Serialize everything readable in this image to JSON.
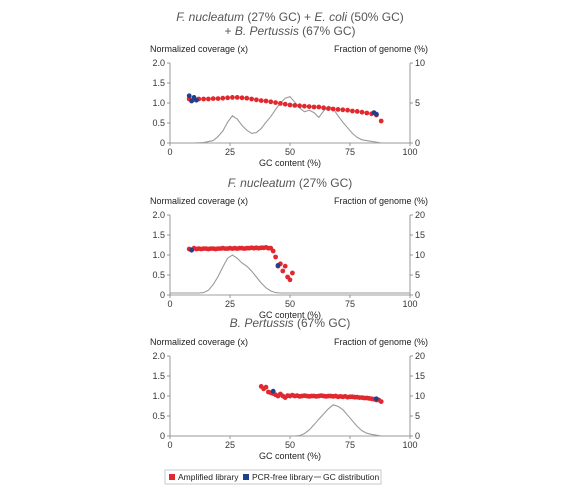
{
  "colors": {
    "amplified": "#e0282e",
    "pcr_free": "#1f3f8f",
    "gc": "#9a9a9a",
    "axis": "#7f7f7f"
  },
  "legend": {
    "items": [
      {
        "key": "amplified",
        "label": "Amplified library"
      },
      {
        "key": "pcr_free",
        "label": "PCR-free library"
      },
      {
        "key": "gc",
        "label": "GC distribution"
      }
    ]
  },
  "chart_data": [
    {
      "type": "scatter",
      "title_parts": [
        "F. nucleatum",
        " (27% GC) + ",
        "E. coli",
        " (50% GC)"
      ],
      "title_line2_parts": [
        "+ ",
        "B. Pertussis",
        " (67% GC)"
      ],
      "xlabel": "GC content (%)",
      "ylabel_left": "Normalized coverage (x)",
      "ylabel_right": "Fraction of genome (%)",
      "xlim": [
        0,
        100
      ],
      "ylim_left": [
        0,
        2.0
      ],
      "ylim_right": [
        0,
        10
      ],
      "x_ticks": [
        "0",
        "25",
        "50",
        "75",
        "100"
      ],
      "y_ticks_left": [
        "0",
        "0.5",
        "1.0",
        "1.5",
        "2.0"
      ],
      "y_ticks_right": [
        "0",
        "5",
        "10"
      ],
      "series": [
        {
          "name": "Amplified library",
          "key": "amplified",
          "x": [
            8,
            10,
            12,
            14,
            16,
            18,
            20,
            22,
            24,
            26,
            28,
            30,
            32,
            34,
            36,
            38,
            40,
            42,
            44,
            46,
            48,
            50,
            52,
            54,
            56,
            58,
            60,
            62,
            64,
            66,
            68,
            70,
            72,
            74,
            76,
            78,
            80,
            82,
            84,
            86,
            88
          ],
          "y": [
            1.1,
            1.09,
            1.1,
            1.1,
            1.1,
            1.11,
            1.11,
            1.12,
            1.13,
            1.14,
            1.14,
            1.13,
            1.12,
            1.1,
            1.08,
            1.06,
            1.05,
            1.03,
            1.01,
            0.99,
            0.97,
            0.95,
            0.94,
            0.93,
            0.92,
            0.91,
            0.9,
            0.9,
            0.88,
            0.86,
            0.85,
            0.84,
            0.83,
            0.82,
            0.8,
            0.79,
            0.77,
            0.75,
            0.73,
            0.7,
            0.55
          ]
        },
        {
          "name": "PCR-free library",
          "key": "pcr_free",
          "x": [
            8,
            9,
            10,
            11,
            85,
            86
          ],
          "y": [
            1.18,
            1.05,
            1.14,
            1.07,
            0.76,
            0.72
          ]
        },
        {
          "name": "GC distribution",
          "key": "gc",
          "kind": "line",
          "x": [
            0,
            10,
            14,
            18,
            20,
            22,
            24,
            26,
            28,
            30,
            32,
            34,
            36,
            38,
            40,
            42,
            44,
            46,
            48,
            50,
            52,
            54,
            56,
            58,
            60,
            62,
            64,
            66,
            68,
            70,
            72,
            74,
            76,
            78,
            80,
            84,
            86,
            88,
            100
          ],
          "y": [
            0,
            0,
            0.05,
            0.3,
            0.8,
            1.5,
            2.6,
            3.4,
            3.0,
            2.2,
            1.6,
            1.2,
            1.3,
            1.8,
            2.6,
            3.3,
            4.2,
            5.0,
            5.6,
            5.8,
            5.1,
            4.4,
            3.9,
            4.1,
            3.8,
            3.2,
            4.0,
            4.6,
            4.3,
            3.4,
            2.6,
            1.9,
            1.2,
            0.7,
            0.4,
            0.2,
            0.1,
            0,
            0
          ]
        }
      ]
    },
    {
      "type": "scatter",
      "title_parts": [
        "F. nucleatum",
        " (27% GC)"
      ],
      "xlabel": "GC content (%)",
      "ylabel_left": "Normalized coverage (x)",
      "ylabel_right": "Fraction of genome (%)",
      "xlim": [
        0,
        100
      ],
      "ylim_left": [
        0,
        2.0
      ],
      "ylim_right": [
        0,
        20
      ],
      "x_ticks": [
        "0",
        "25",
        "50",
        "75",
        "100"
      ],
      "y_ticks_left": [
        "0",
        "0.5",
        "1.0",
        "1.5",
        "2.0"
      ],
      "y_ticks_right": [
        "0",
        "5",
        "10",
        "15",
        "20"
      ],
      "series": [
        {
          "name": "Amplified library",
          "key": "amplified",
          "x": [
            8,
            9,
            10,
            11,
            12,
            13,
            14,
            15,
            16,
            17,
            18,
            19,
            20,
            21,
            22,
            23,
            24,
            25,
            26,
            27,
            28,
            29,
            30,
            31,
            32,
            33,
            34,
            35,
            36,
            37,
            38,
            39,
            40,
            41,
            42,
            43,
            44,
            45,
            46,
            47,
            48,
            49,
            50,
            51
          ],
          "y": [
            1.15,
            1.13,
            1.17,
            1.15,
            1.16,
            1.15,
            1.16,
            1.16,
            1.15,
            1.16,
            1.16,
            1.15,
            1.16,
            1.16,
            1.17,
            1.16,
            1.16,
            1.17,
            1.16,
            1.17,
            1.16,
            1.17,
            1.17,
            1.16,
            1.17,
            1.17,
            1.18,
            1.17,
            1.18,
            1.17,
            1.18,
            1.18,
            1.19,
            1.17,
            1.17,
            1.1,
            0.95,
            0.72,
            0.78,
            0.6,
            0.72,
            0.45,
            0.38,
            0.55
          ]
        },
        {
          "name": "PCR-free library",
          "key": "pcr_free",
          "x": [
            9,
            45
          ],
          "y": [
            1.12,
            0.74
          ]
        },
        {
          "name": "GC distribution",
          "key": "gc",
          "kind": "line",
          "x": [
            0,
            12,
            14,
            16,
            18,
            20,
            22,
            24,
            26,
            28,
            30,
            32,
            34,
            36,
            38,
            40,
            42,
            44,
            46,
            48,
            100
          ],
          "y": [
            0.5,
            0.5,
            0.6,
            1.2,
            2.6,
            4.6,
            7.0,
            9.2,
            10.0,
            9.2,
            8.0,
            7.2,
            6.0,
            4.5,
            3.0,
            1.8,
            1.0,
            0.6,
            0.5,
            0.5,
            0.5
          ]
        }
      ]
    },
    {
      "type": "scatter",
      "title_parts": [
        "B. Pertussis",
        " (67% GC)"
      ],
      "xlabel": "GC content (%)",
      "ylabel_left": "Normalized coverage (x)",
      "ylabel_right": "Fraction of genome (%)",
      "xlim": [
        0,
        100
      ],
      "ylim_left": [
        0,
        2.0
      ],
      "ylim_right": [
        0,
        20
      ],
      "x_ticks": [
        "0",
        "25",
        "50",
        "75",
        "100"
      ],
      "y_ticks_left": [
        "0",
        "0.5",
        "1.0",
        "1.5",
        "2.0"
      ],
      "y_ticks_right": [
        "0",
        "5",
        "10",
        "15",
        "20"
      ],
      "series": [
        {
          "name": "Amplified library",
          "key": "amplified",
          "x": [
            38,
            39,
            40,
            41,
            42,
            43,
            44,
            45,
            46,
            47,
            48,
            49,
            50,
            51,
            52,
            53,
            54,
            55,
            56,
            57,
            58,
            59,
            60,
            61,
            62,
            63,
            64,
            65,
            66,
            67,
            68,
            69,
            70,
            71,
            72,
            73,
            74,
            75,
            76,
            77,
            78,
            79,
            80,
            81,
            82,
            83,
            84,
            85,
            86,
            87,
            88
          ],
          "y": [
            1.24,
            1.18,
            1.22,
            1.1,
            1.08,
            1.06,
            1.03,
            1.0,
            1.05,
            1.0,
            0.96,
            1.01,
            1.0,
            1.02,
            1.0,
            1.01,
            0.99,
            1.0,
            1.01,
            1.0,
            0.99,
            1.0,
            1.0,
            0.99,
            1.0,
            1.01,
            1.0,
            0.99,
            1.0,
            1.0,
            0.99,
            1.0,
            0.98,
            0.99,
            0.98,
            0.99,
            0.97,
            0.98,
            0.98,
            0.97,
            0.97,
            0.96,
            0.96,
            0.95,
            0.95,
            0.94,
            0.93,
            0.92,
            0.9,
            0.9,
            0.86
          ]
        },
        {
          "name": "PCR-free library",
          "key": "pcr_free",
          "x": [
            43,
            86
          ],
          "y": [
            1.12,
            0.93
          ]
        },
        {
          "name": "GC distribution",
          "key": "gc",
          "kind": "line",
          "x": [
            0,
            52,
            54,
            56,
            58,
            60,
            62,
            64,
            66,
            68,
            70,
            72,
            74,
            76,
            78,
            80,
            82,
            84,
            86,
            88,
            90,
            100
          ],
          "y": [
            0,
            0,
            0.1,
            0.6,
            1.5,
            2.8,
            4.2,
            5.5,
            6.8,
            7.8,
            7.4,
            6.6,
            5.2,
            3.8,
            2.4,
            1.3,
            0.7,
            0.4,
            0.2,
            0,
            0,
            0
          ]
        }
      ]
    }
  ]
}
